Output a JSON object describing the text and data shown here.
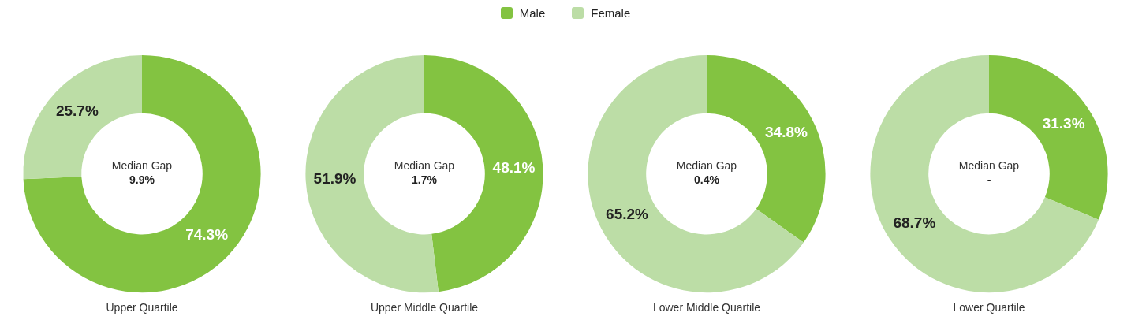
{
  "chart_data": [
    {
      "type": "donut",
      "title": "Upper Quartile",
      "categories": [
        "Male",
        "Female"
      ],
      "values": [
        74.3,
        25.7
      ],
      "colors": [
        "#83c341",
        "#bcdda6"
      ],
      "value_labels": [
        "74.3%",
        "25.7%"
      ],
      "annotations": [
        "Median Gap",
        "9.9%"
      ],
      "legend": "top"
    },
    {
      "type": "donut",
      "title": "Upper Middle Quartile",
      "categories": [
        null,
        null
      ],
      "values": [
        48.1,
        51.9
      ],
      "colors": [
        "#83c341",
        "#bcdda6"
      ],
      "value_labels": [
        "48.1%",
        "51.9%"
      ],
      "annotations": [
        "Median Gap",
        "1.7%"
      ]
    },
    {
      "type": "donut",
      "title": "Lower Middle Quartile",
      "categories": [
        null,
        null
      ],
      "values": [
        34.8,
        65.2
      ],
      "colors": [
        "#83c341",
        "#bcdda6"
      ],
      "value_labels": [
        "34.8%",
        "65.2%"
      ],
      "annotations": [
        "Median Gap",
        "0.4%"
      ]
    },
    {
      "type": "donut",
      "title": "Lower Quartile",
      "categories": [
        null,
        null
      ],
      "values": [
        31.3,
        68.7
      ],
      "colors": [
        "#83c341",
        "#bcdda6"
      ],
      "value_labels": [
        "31.3%",
        "68.7%"
      ],
      "annotations": [
        "Median Gap",
        "-"
      ]
    }
  ]
}
